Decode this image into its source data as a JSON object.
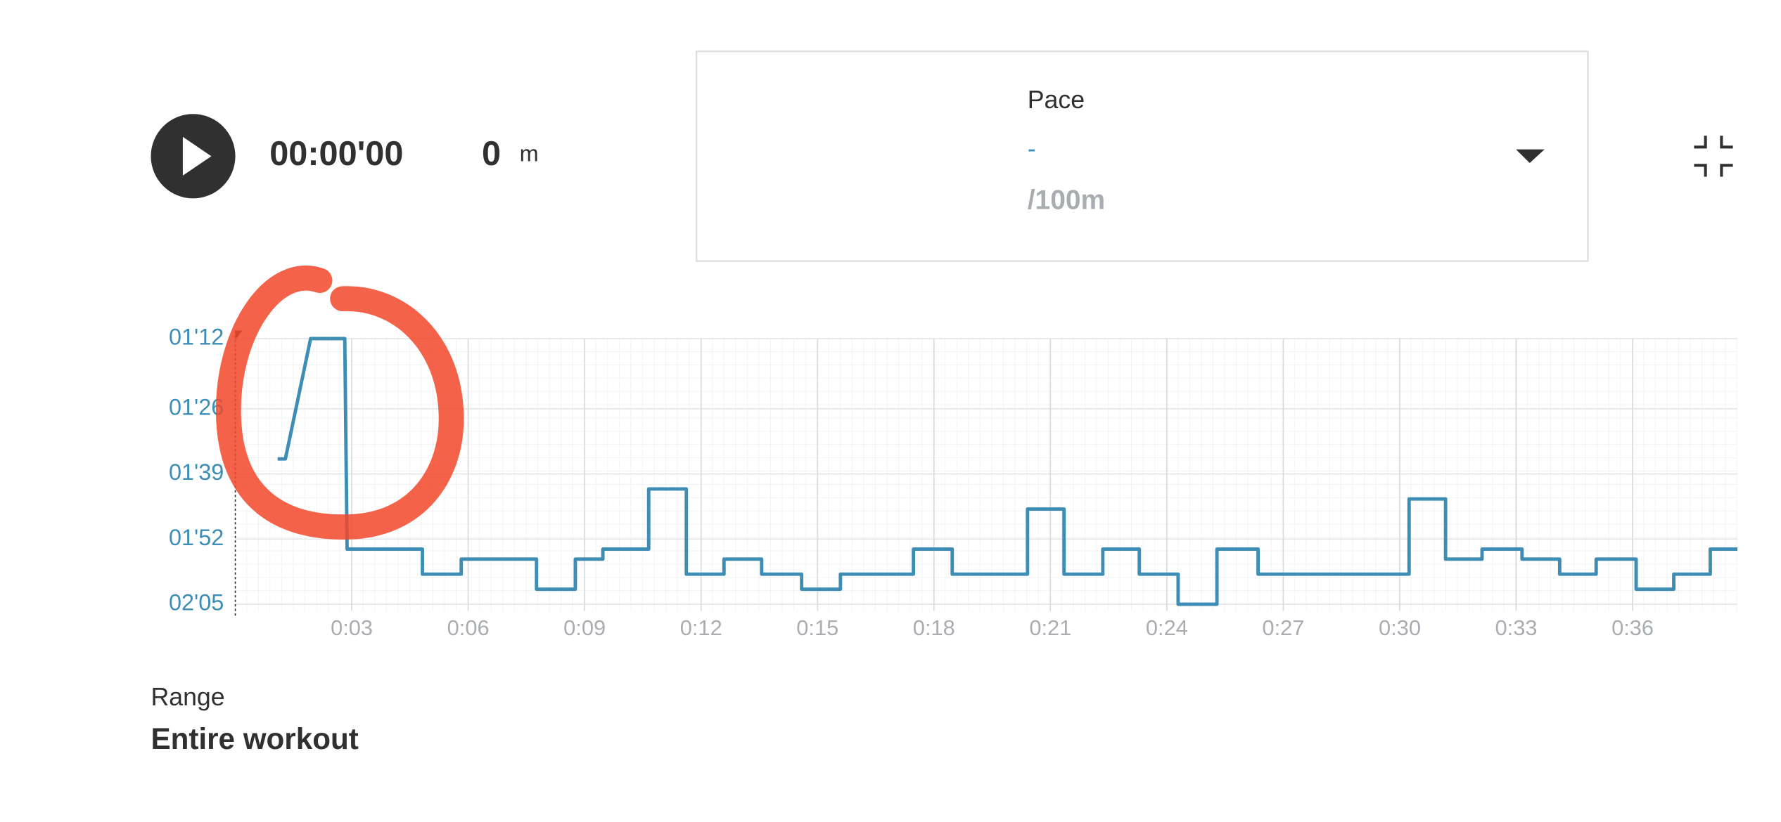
{
  "header": {
    "elapsed_time": "00:00'00",
    "distance": 0,
    "distance_unit": "m"
  },
  "metric_selector": {
    "label": "Pace",
    "value": "-",
    "unit": "/100m"
  },
  "range": {
    "label": "Range",
    "value": "Entire workout"
  },
  "chart_data": {
    "type": "line",
    "color": "#3d8db5",
    "grid": true,
    "xlim": [
      0,
      38.7
    ],
    "ylim": [
      125,
      72
    ],
    "xticks": [
      {
        "value": 3,
        "label": "0:03"
      },
      {
        "value": 6,
        "label": "0:06"
      },
      {
        "value": 9,
        "label": "0:09"
      },
      {
        "value": 12,
        "label": "0:12"
      },
      {
        "value": 15,
        "label": "0:15"
      },
      {
        "value": 18,
        "label": "0:18"
      },
      {
        "value": 21,
        "label": "0:21"
      },
      {
        "value": 24,
        "label": "0:24"
      },
      {
        "value": 27,
        "label": "0:27"
      },
      {
        "value": 30,
        "label": "0:30"
      },
      {
        "value": 33,
        "label": "0:33"
      },
      {
        "value": 36,
        "label": "0:36"
      }
    ],
    "yticks": [
      {
        "value": 72,
        "label": "01'12"
      },
      {
        "value": 86,
        "label": "01'26"
      },
      {
        "value": 99,
        "label": "01'39"
      },
      {
        "value": 112,
        "label": "01'52"
      },
      {
        "value": 125,
        "label": "02'05"
      }
    ],
    "x": [
      1.09,
      1.29,
      1.94,
      2.82,
      2.88,
      4.82,
      4.82,
      5.82,
      5.82,
      7.76,
      7.76,
      8.76,
      8.76,
      9.47,
      9.47,
      10.65,
      10.65,
      11.62,
      11.62,
      12.59,
      12.59,
      13.56,
      13.56,
      14.59,
      14.59,
      15.59,
      15.59,
      17.47,
      17.47,
      18.47,
      18.47,
      20.41,
      20.41,
      21.35,
      21.35,
      22.35,
      22.35,
      23.29,
      23.29,
      24.29,
      24.29,
      25.29,
      25.29,
      26.35,
      26.35,
      30.24,
      30.24,
      31.18,
      31.18,
      32.12,
      32.12,
      33.15,
      33.15,
      34.12,
      34.12,
      35.06,
      35.06,
      36.09,
      36.09,
      37.06,
      37.06,
      38.0,
      38.0,
      38.7
    ],
    "values": [
      96,
      96,
      72,
      72,
      114,
      114,
      119,
      119,
      116,
      116,
      122,
      122,
      116,
      116,
      114,
      114,
      102,
      102,
      119,
      119,
      116,
      116,
      119,
      119,
      122,
      122,
      119,
      119,
      114,
      114,
      119,
      119,
      106,
      106,
      119,
      119,
      114,
      114,
      119,
      119,
      125,
      125,
      114,
      114,
      119,
      119,
      104,
      104,
      116,
      116,
      114,
      114,
      116,
      116,
      119,
      119,
      116,
      116,
      122,
      122,
      119,
      119,
      114,
      114
    ]
  }
}
